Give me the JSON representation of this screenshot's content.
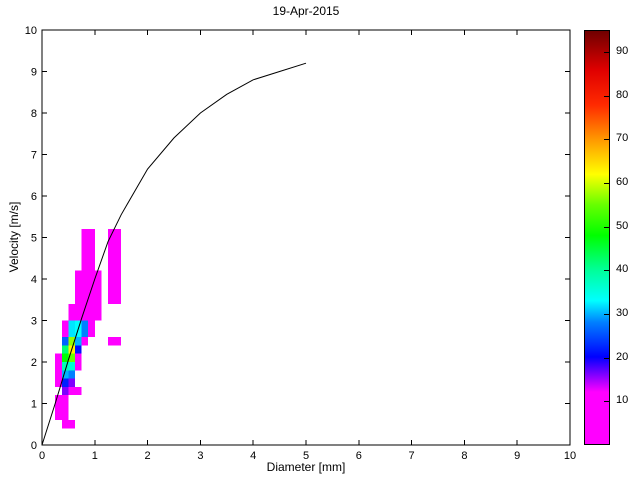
{
  "figure": {
    "background": "#ffffff"
  },
  "chart_data": {
    "type": "heatmap",
    "title": "19-Apr-2015",
    "xlabel": "Diameter [mm]",
    "ylabel": "Velocity [m/s]",
    "xlim": [
      0,
      10
    ],
    "ylim": [
      0,
      10
    ],
    "x_ticks": [
      0,
      1,
      2,
      3,
      4,
      5,
      6,
      7,
      8,
      9,
      10
    ],
    "y_ticks": [
      0,
      1,
      2,
      3,
      4,
      5,
      6,
      7,
      8,
      9,
      10
    ],
    "grid": false,
    "legend": "colorbar-right",
    "cells_format": [
      "d_min_mm",
      "d_width_mm",
      "v_min_ms",
      "v_height_ms",
      "count"
    ],
    "cells": [
      [
        0.25,
        0.125,
        0.6,
        0.2,
        3
      ],
      [
        0.25,
        0.125,
        0.8,
        0.2,
        4
      ],
      [
        0.25,
        0.125,
        1.0,
        0.2,
        3
      ],
      [
        0.25,
        0.125,
        1.4,
        0.2,
        4
      ],
      [
        0.25,
        0.125,
        1.6,
        0.2,
        6
      ],
      [
        0.25,
        0.125,
        1.8,
        0.2,
        5
      ],
      [
        0.25,
        0.125,
        2.0,
        0.2,
        4
      ],
      [
        0.375,
        0.125,
        0.4,
        0.2,
        6
      ],
      [
        0.375,
        0.125,
        0.6,
        0.2,
        8
      ],
      [
        0.375,
        0.125,
        0.8,
        0.2,
        9
      ],
      [
        0.375,
        0.125,
        1.0,
        0.2,
        5
      ],
      [
        0.375,
        0.125,
        1.2,
        0.2,
        16
      ],
      [
        0.375,
        0.125,
        1.4,
        0.2,
        22
      ],
      [
        0.375,
        0.125,
        1.6,
        0.2,
        30
      ],
      [
        0.375,
        0.125,
        1.8,
        0.2,
        38
      ],
      [
        0.375,
        0.125,
        2.0,
        0.2,
        48
      ],
      [
        0.375,
        0.125,
        2.2,
        0.2,
        42
      ],
      [
        0.375,
        0.125,
        2.4,
        0.2,
        26
      ],
      [
        0.375,
        0.125,
        2.6,
        0.4,
        10
      ],
      [
        0.5,
        0.125,
        0.4,
        0.2,
        4
      ],
      [
        0.5,
        0.125,
        1.2,
        0.2,
        9
      ],
      [
        0.5,
        0.125,
        1.4,
        0.2,
        16
      ],
      [
        0.5,
        0.125,
        1.6,
        0.2,
        28
      ],
      [
        0.5,
        0.125,
        1.8,
        0.2,
        36
      ],
      [
        0.5,
        0.125,
        2.0,
        0.2,
        55
      ],
      [
        0.5,
        0.125,
        2.2,
        0.2,
        63
      ],
      [
        0.5,
        0.125,
        2.4,
        0.2,
        57
      ],
      [
        0.5,
        0.125,
        2.6,
        0.4,
        32
      ],
      [
        0.5,
        0.125,
        3.0,
        0.4,
        10
      ],
      [
        0.625,
        0.125,
        1.2,
        0.2,
        3
      ],
      [
        0.625,
        0.125,
        1.8,
        0.2,
        6
      ],
      [
        0.625,
        0.125,
        2.0,
        0.2,
        11
      ],
      [
        0.625,
        0.125,
        2.2,
        0.2,
        21
      ],
      [
        0.625,
        0.125,
        2.4,
        0.2,
        30
      ],
      [
        0.625,
        0.125,
        2.6,
        0.4,
        33
      ],
      [
        0.625,
        0.125,
        3.0,
        0.4,
        12
      ],
      [
        0.625,
        0.125,
        3.4,
        0.8,
        6
      ],
      [
        0.75,
        0.125,
        2.4,
        0.2,
        8
      ],
      [
        0.75,
        0.125,
        2.6,
        0.4,
        28
      ],
      [
        0.75,
        0.125,
        3.0,
        0.4,
        11
      ],
      [
        0.75,
        0.125,
        3.4,
        0.8,
        6
      ],
      [
        0.75,
        0.125,
        4.2,
        1.0,
        4
      ],
      [
        0.875,
        0.125,
        2.6,
        0.4,
        6
      ],
      [
        0.875,
        0.125,
        3.0,
        0.4,
        8
      ],
      [
        0.875,
        0.125,
        3.4,
        0.8,
        7
      ],
      [
        0.875,
        0.125,
        4.2,
        1.0,
        5
      ],
      [
        1.0,
        0.125,
        3.0,
        0.4,
        5
      ],
      [
        1.0,
        0.125,
        3.4,
        0.8,
        6
      ],
      [
        1.25,
        0.25,
        2.4,
        0.2,
        3
      ],
      [
        1.25,
        0.25,
        3.4,
        0.8,
        5
      ],
      [
        1.25,
        0.25,
        4.2,
        1.0,
        4
      ]
    ],
    "curve": {
      "name": "terminal-velocity-curve",
      "color": "#000000",
      "points": [
        [
          0,
          0
        ],
        [
          0.25,
          1.0
        ],
        [
          0.5,
          2.05
        ],
        [
          0.75,
          3.05
        ],
        [
          1.0,
          4.0
        ],
        [
          1.25,
          4.9
        ],
        [
          1.5,
          5.55
        ],
        [
          2.0,
          6.65
        ],
        [
          2.5,
          7.4
        ],
        [
          3.0,
          8.0
        ],
        [
          3.5,
          8.45
        ],
        [
          4.0,
          8.8
        ],
        [
          4.5,
          9.0
        ],
        [
          5.0,
          9.2
        ]
      ]
    },
    "colorbar": {
      "min": 0,
      "max": 95,
      "ticks": [
        10,
        20,
        30,
        40,
        50,
        60,
        70,
        80,
        90
      ],
      "stops": [
        [
          0,
          "#ff00ff"
        ],
        [
          12,
          "#ff00ff"
        ],
        [
          16,
          "#8000ff"
        ],
        [
          20,
          "#0000ff"
        ],
        [
          28,
          "#0080ff"
        ],
        [
          33,
          "#00ffff"
        ],
        [
          40,
          "#00ff99"
        ],
        [
          48,
          "#00ff00"
        ],
        [
          55,
          "#66ff00"
        ],
        [
          62,
          "#ffff00"
        ],
        [
          70,
          "#ff9900"
        ],
        [
          78,
          "#ff2a00"
        ],
        [
          86,
          "#e00000"
        ],
        [
          95,
          "#700000"
        ]
      ]
    }
  }
}
